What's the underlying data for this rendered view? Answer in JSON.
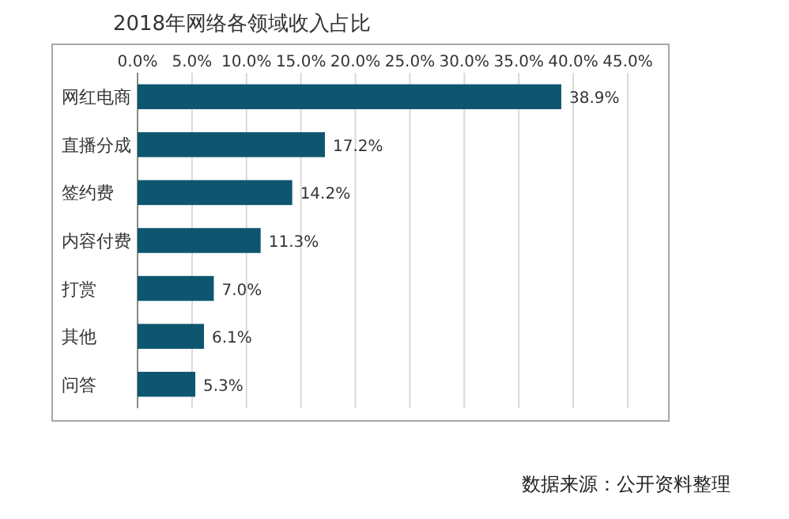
{
  "chart_data": {
    "type": "bar",
    "orientation": "horizontal",
    "title": "2018年网络各领域收入占比",
    "categories": [
      "网红电商",
      "直播分成",
      "签约费",
      "内容付费",
      "打赏",
      "其他",
      "问答"
    ],
    "values": [
      38.9,
      17.2,
      14.2,
      11.3,
      7.0,
      6.1,
      5.3
    ],
    "value_labels": [
      "38.9%",
      "17.2%",
      "14.2%",
      "11.3%",
      "7.0%",
      "6.1%",
      "5.3%"
    ],
    "color": "#0e5670",
    "xlim": [
      0,
      45
    ],
    "xticks": [
      {
        "value": 0,
        "label": "0.0%"
      },
      {
        "value": 5,
        "label": "5.0%"
      },
      {
        "value": 10,
        "label": "10.0%"
      },
      {
        "value": 15,
        "label": "15.0%"
      },
      {
        "value": 20,
        "label": "20.0%"
      },
      {
        "value": 25,
        "label": "25.0%"
      },
      {
        "value": 30,
        "label": "30.0%"
      },
      {
        "value": 35,
        "label": "35.0%"
      },
      {
        "value": 40,
        "label": "40.0%"
      },
      {
        "value": 45,
        "label": "45.0%"
      }
    ],
    "grid": "x",
    "annotations": [
      "数据来源：公开资料整理"
    ]
  }
}
